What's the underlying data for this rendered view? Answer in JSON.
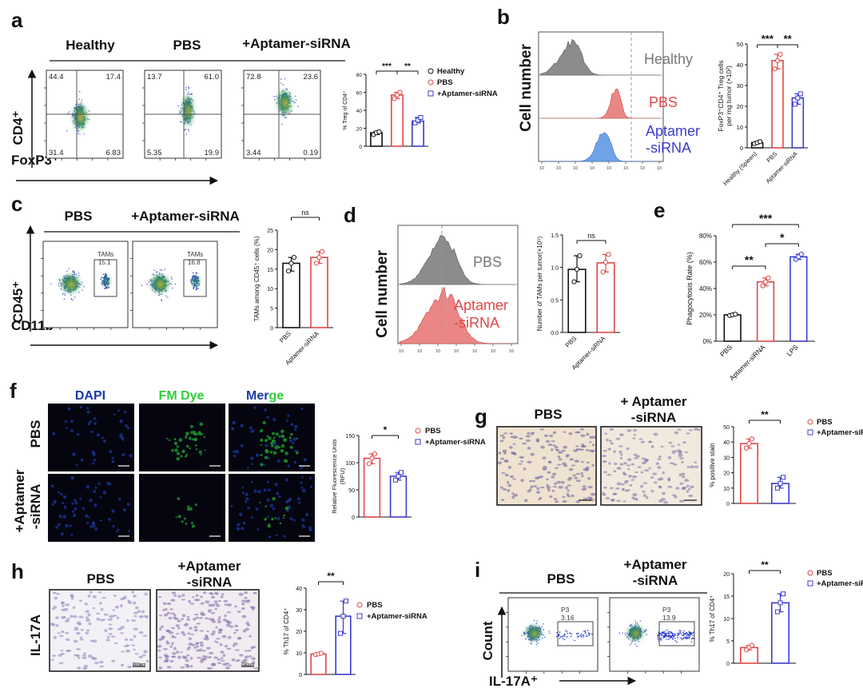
{
  "colors": {
    "healthy": "#111111",
    "pbs": "#e04848",
    "aptamer": "#3b3bd0",
    "lps": "#3b3bd0",
    "flow_blue": "#2a3cd8",
    "flow_core": "#2e9e3c",
    "flow_hot": "#ffd020",
    "hist_gray": "#8c8c8c",
    "hist_red": "#ea8686",
    "hist_blue": "#6fa3e6",
    "dapi": "#1b3aa6",
    "fm": "#1c8c2a",
    "ihc_bg": "#efe2d0",
    "ihc_bg2": "#f2ecf2"
  },
  "panels": {
    "a": {
      "letter": "a",
      "groups": [
        "Healthy",
        "PBS",
        "+Aptamer-siRNA"
      ],
      "ylabel": "CD4⁺",
      "xlabel": "FoxP3⁺",
      "quadrants": [
        {
          "ul": "44.4",
          "ur": "17.4",
          "ll": "31.4",
          "lr": "6.83"
        },
        {
          "ul": "13.7",
          "ur": "61.0",
          "ll": "5.35",
          "lr": "19.9"
        },
        {
          "ul": "72.8",
          "ur": "23.6",
          "ll": "3.44",
          "lr": "0.19"
        }
      ],
      "sig": [
        "***",
        "**"
      ],
      "legend": [
        "Healthy",
        "PBS",
        "+Aptamer-siRNA"
      ]
    },
    "b": {
      "letter": "b",
      "ylabel": "Cell number",
      "hist_labels": [
        "Healthy",
        "PBS",
        "Aptamer",
        "-siRNA"
      ],
      "sig": [
        "***",
        "**"
      ]
    },
    "c": {
      "letter": "c",
      "groups": [
        "PBS",
        "+Aptamer-siRNA"
      ],
      "ylabel": "CD45⁺",
      "xlabel": "CD11b⁺",
      "gate_label": "TAMs",
      "gate_values": [
        "15.1",
        "16.8"
      ],
      "sig": "ns"
    },
    "d": {
      "letter": "d",
      "ylabel": "Cell number",
      "hist_labels": [
        "PBS",
        "Aptamer",
        "-siRNA"
      ],
      "sig": "ns"
    },
    "e": {
      "letter": "e",
      "sig": [
        "***",
        "**",
        "*"
      ]
    },
    "f": {
      "letter": "f",
      "col_titles": [
        "DAPI",
        "FM Dye",
        "Mer",
        "ge"
      ],
      "row_labels": [
        "PBS",
        "+Aptamer",
        "-siRNA"
      ],
      "sig": "*",
      "legend": [
        "PBS",
        "+Aptamer-siRNA"
      ]
    },
    "g": {
      "letter": "g",
      "titles": [
        "PBS",
        "+ Aptamer",
        "-siRNA"
      ],
      "sig": "**",
      "legend": [
        "PBS",
        "+Aptamer-siRNA"
      ]
    },
    "h": {
      "letter": "h",
      "titles": [
        "PBS",
        "+Aptamer",
        "-siRNA"
      ],
      "row_label": "IL-17A",
      "scale": "200μm",
      "sig": "**",
      "legend": [
        "PBS",
        "+Aptamer-siRNA"
      ]
    },
    "i": {
      "letter": "i",
      "titles": [
        "PBS",
        "+Aptamer",
        "-siRNA"
      ],
      "ylabel": "Count",
      "xlabel": "IL-17A⁺",
      "gate_label": "P3",
      "gate_values": [
        "3.16",
        "13.9"
      ],
      "sig": "**",
      "legend": [
        "PBS",
        "+Aptamer-siRNA"
      ]
    }
  },
  "chart_data": [
    {
      "panel": "a",
      "type": "bar",
      "categories": [
        "Healthy",
        "PBS",
        "+Aptamer-siRNA"
      ],
      "values": [
        15,
        57,
        28
      ],
      "points": [
        [
          13,
          15,
          16
        ],
        [
          53,
          57,
          60
        ],
        [
          26,
          29,
          32
        ]
      ],
      "ylabel": "% Treg of CD4⁺",
      "ylim": [
        0,
        80
      ],
      "ticks": [
        0,
        20,
        40,
        60,
        80
      ]
    },
    {
      "panel": "b",
      "type": "bar",
      "categories": [
        "Healthy (Spleen)",
        "PBS",
        "Aptamer-siRNA"
      ],
      "values": [
        2.5,
        42,
        24
      ],
      "points": [
        [
          2,
          2.5,
          3
        ],
        [
          38,
          42,
          45
        ],
        [
          21,
          24,
          26
        ]
      ],
      "ylabel": "FoxP3⁺CD4⁺ Treg cells per mg tumor (×10²)",
      "ylim": [
        0,
        50
      ],
      "ticks": [
        0,
        10,
        20,
        30,
        40,
        50
      ]
    },
    {
      "panel": "c",
      "type": "bar",
      "categories": [
        "PBS",
        "Aptamer-siRNA"
      ],
      "values": [
        16.5,
        18
      ],
      "points": [
        [
          14.5,
          16.5,
          18
        ],
        [
          16.5,
          18,
          19.5
        ]
      ],
      "ylabel": "TAMs among CD45⁺ cells (%)",
      "ylim": [
        0,
        25
      ],
      "ticks": [
        0,
        5,
        10,
        15,
        20,
        25
      ]
    },
    {
      "panel": "d",
      "type": "bar",
      "categories": [
        "PBS",
        "Aptamer-siRNA"
      ],
      "values": [
        0.97,
        1.07
      ],
      "points": [
        [
          0.78,
          0.97,
          1.18
        ],
        [
          0.93,
          1.08,
          1.2
        ]
      ],
      "ylabel": "Number of TAMs per tumor(×10⁵)",
      "ylim": [
        0,
        1.5
      ],
      "ticks": [
        0.0,
        0.5,
        1.0,
        1.5
      ]
    },
    {
      "panel": "e",
      "type": "bar",
      "categories": [
        "PBS",
        "Aptamer-siRNA",
        "LPS"
      ],
      "values": [
        20,
        45,
        64
      ],
      "points": [
        [
          19.5,
          20,
          20.5
        ],
        [
          42,
          45,
          48
        ],
        [
          62,
          64,
          66
        ]
      ],
      "ylabel": "Phagocytosis Rate (%)",
      "ylim": [
        0,
        80
      ],
      "ticks": [
        "0%",
        "20%",
        "40%",
        "60%",
        "80%"
      ]
    },
    {
      "panel": "f",
      "type": "bar",
      "categories": [
        "PBS",
        "+Aptamer-siRNA"
      ],
      "values": [
        108,
        75
      ],
      "points": [
        [
          98,
          108,
          116
        ],
        [
          68,
          75,
          82
        ]
      ],
      "ylabel": "Relative Fluorescence Units (RFU)",
      "ylim": [
        0,
        150
      ],
      "ticks": [
        0,
        50,
        100,
        150
      ]
    },
    {
      "panel": "g",
      "type": "bar",
      "categories": [
        "PBS",
        "+Aptamer-siRNA"
      ],
      "values": [
        39,
        13
      ],
      "points": [
        [
          36,
          39,
          42
        ],
        [
          10,
          13,
          17
        ]
      ],
      "ylabel": "% positive stain",
      "ylim": [
        0,
        50
      ],
      "ticks": [
        0,
        10,
        20,
        30,
        40,
        50
      ]
    },
    {
      "panel": "h",
      "type": "bar",
      "categories": [
        "PBS",
        "+Aptamer-siRNA"
      ],
      "values": [
        9.5,
        27
      ],
      "points": [
        [
          9.2,
          9.5,
          9.8
        ],
        [
          19,
          27,
          34
        ]
      ],
      "ylabel": "% Th17 of CD4⁺",
      "ylim": [
        0,
        40
      ],
      "ticks": [
        0,
        10,
        20,
        30,
        40
      ]
    },
    {
      "panel": "i",
      "type": "bar",
      "categories": [
        "PBS",
        "+Aptamer-siRNA"
      ],
      "values": [
        3.5,
        13.5
      ],
      "points": [
        [
          3,
          3.6,
          4
        ],
        [
          11.5,
          13.5,
          15.5
        ]
      ],
      "ylabel": "% Th17 of CD4⁺",
      "ylim": [
        0,
        20
      ],
      "ticks": [
        0,
        5,
        10,
        15,
        20
      ]
    }
  ]
}
